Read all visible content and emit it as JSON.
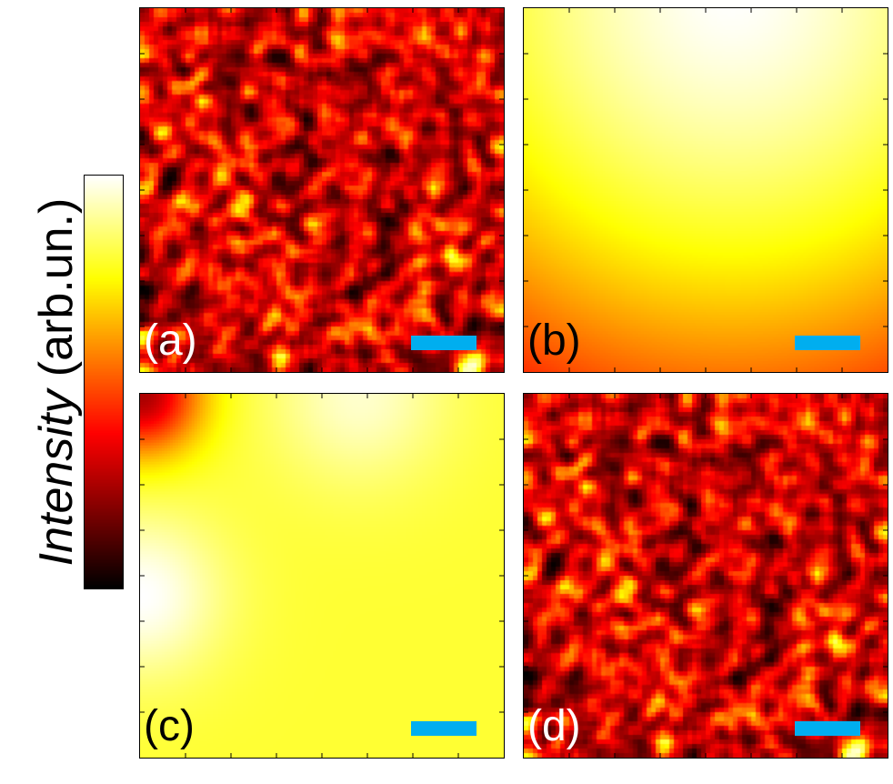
{
  "colorbar": {
    "label_italic": "Intensity",
    "label_units": " (arb.un.)",
    "colormap": "hot"
  },
  "panels": [
    {
      "id": "a",
      "label": "(a)",
      "pattern": "speckle",
      "label_color": "#ffffff"
    },
    {
      "id": "b",
      "label": "(b)",
      "pattern": "smooth-b",
      "label_color": "#000000"
    },
    {
      "id": "c",
      "label": "(c)",
      "pattern": "smooth-c",
      "label_color": "#000000"
    },
    {
      "id": "d",
      "label": "(d)",
      "pattern": "speckle",
      "label_color": "#ffffff"
    }
  ],
  "scale_bar_color": "#00aeef"
}
